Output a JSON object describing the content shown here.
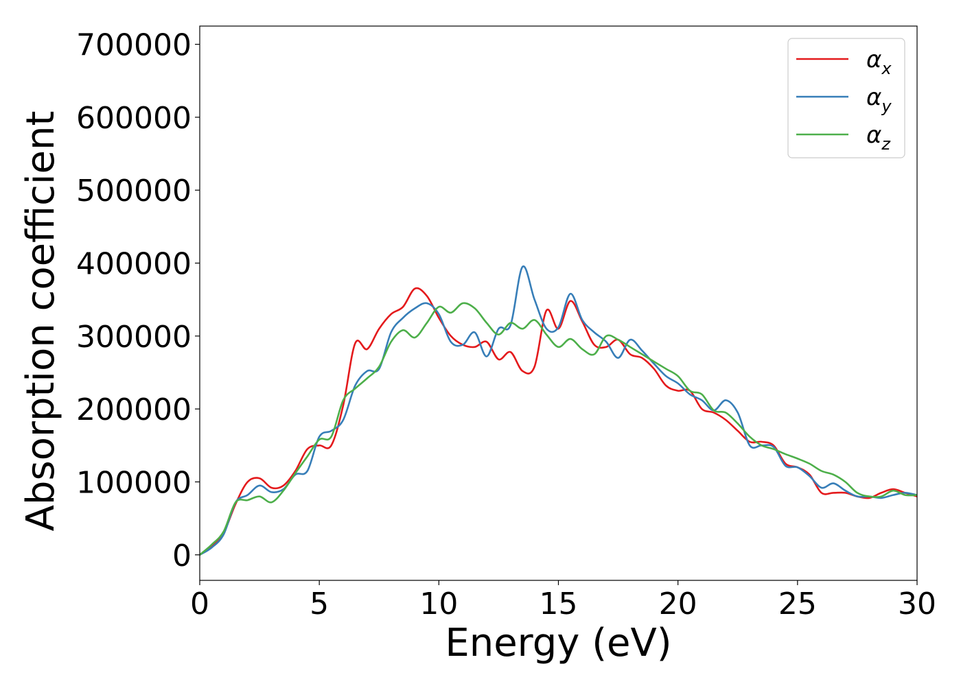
{
  "chart_data": {
    "type": "line",
    "title": "",
    "xlabel": "Energy (eV)",
    "ylabel": "Absorption coefficient",
    "xlim": [
      0,
      30
    ],
    "ylim": [
      -35000,
      725000
    ],
    "xticks": [
      0,
      5,
      10,
      15,
      20,
      25,
      30
    ],
    "xtick_labels": [
      "0",
      "5",
      "10",
      "15",
      "20",
      "25",
      "30"
    ],
    "yticks": [
      0,
      100000,
      200000,
      300000,
      400000,
      500000,
      600000,
      700000
    ],
    "ytick_labels": [
      "0",
      "100000",
      "200000",
      "300000",
      "400000",
      "500000",
      "600000",
      "700000"
    ],
    "grid": false,
    "legend_position": "top-right",
    "series": [
      {
        "name": "αx",
        "symbol": "α",
        "subscript": "x",
        "color": "#e41a1c",
        "x": [
          0,
          0.5,
          1,
          1.5,
          2,
          2.5,
          3,
          3.5,
          4,
          4.5,
          5,
          5.5,
          6,
          6.5,
          7,
          7.5,
          8,
          8.5,
          9,
          9.5,
          10,
          10.5,
          11,
          11.5,
          12,
          12.5,
          13,
          13.5,
          14,
          14.5,
          15,
          15.5,
          16,
          16.5,
          17,
          17.5,
          18,
          18.5,
          19,
          19.5,
          20,
          20.5,
          21,
          21.5,
          22,
          22.5,
          23,
          23.5,
          24,
          24.5,
          25,
          25.5,
          26,
          26.5,
          27,
          27.5,
          28,
          28.5,
          29,
          29.5,
          30
        ],
        "y": [
          0,
          12000,
          30000,
          70000,
          100000,
          105000,
          92000,
          95000,
          115000,
          145000,
          150000,
          150000,
          205000,
          290000,
          282000,
          310000,
          330000,
          340000,
          365000,
          355000,
          325000,
          300000,
          288000,
          285000,
          292000,
          268000,
          278000,
          252000,
          258000,
          335000,
          310000,
          348000,
          320000,
          288000,
          285000,
          295000,
          275000,
          270000,
          255000,
          232000,
          225000,
          225000,
          200000,
          195000,
          185000,
          170000,
          155000,
          155000,
          150000,
          125000,
          120000,
          110000,
          85000,
          85000,
          85000,
          80000,
          78000,
          85000,
          90000,
          85000,
          80000
        ]
      },
      {
        "name": "αy",
        "symbol": "α",
        "subscript": "y",
        "color": "#377eb8",
        "x": [
          0,
          0.5,
          1,
          1.5,
          2,
          2.5,
          3,
          3.5,
          4,
          4.5,
          5,
          5.5,
          6,
          6.5,
          7,
          7.5,
          8,
          8.5,
          9,
          9.5,
          10,
          10.5,
          11,
          11.5,
          12,
          12.5,
          13,
          13.5,
          14,
          14.5,
          15,
          15.5,
          16,
          16.5,
          17,
          17.5,
          18,
          18.5,
          19,
          19.5,
          20,
          20.5,
          21,
          21.5,
          22,
          22.5,
          23,
          23.5,
          24,
          24.5,
          25,
          25.5,
          26,
          26.5,
          27,
          27.5,
          28,
          28.5,
          29,
          29.5,
          30
        ],
        "y": [
          0,
          10000,
          28000,
          72000,
          82000,
          95000,
          86000,
          90000,
          110000,
          115000,
          162000,
          170000,
          185000,
          232000,
          252000,
          255000,
          305000,
          325000,
          338000,
          345000,
          330000,
          292000,
          288000,
          305000,
          272000,
          310000,
          315000,
          395000,
          350000,
          310000,
          312000,
          358000,
          322000,
          305000,
          292000,
          270000,
          295000,
          280000,
          262000,
          245000,
          235000,
          220000,
          212000,
          198000,
          212000,
          195000,
          150000,
          150000,
          148000,
          122000,
          120000,
          108000,
          92000,
          98000,
          88000,
          80000,
          80000,
          78000,
          82000,
          85000,
          82000
        ]
      },
      {
        "name": "αz",
        "symbol": "α",
        "subscript": "z",
        "color": "#4daf4a",
        "x": [
          0,
          0.5,
          1,
          1.5,
          2,
          2.5,
          3,
          3.5,
          4,
          4.5,
          5,
          5.5,
          6,
          6.5,
          7,
          7.5,
          8,
          8.5,
          9,
          9.5,
          10,
          10.5,
          11,
          11.5,
          12,
          12.5,
          13,
          13.5,
          14,
          14.5,
          15,
          15.5,
          16,
          16.5,
          17,
          17.5,
          18,
          18.5,
          19,
          19.5,
          20,
          20.5,
          21,
          21.5,
          22,
          22.5,
          23,
          23.5,
          24,
          24.5,
          25,
          25.5,
          26,
          26.5,
          27,
          27.5,
          28,
          28.5,
          29,
          29.5,
          30
        ],
        "y": [
          0,
          14000,
          32000,
          72000,
          75000,
          80000,
          72000,
          88000,
          112000,
          135000,
          158000,
          162000,
          212000,
          228000,
          242000,
          258000,
          292000,
          308000,
          298000,
          318000,
          340000,
          332000,
          345000,
          338000,
          318000,
          302000,
          318000,
          310000,
          322000,
          302000,
          285000,
          296000,
          282000,
          275000,
          300000,
          295000,
          285000,
          275000,
          265000,
          255000,
          245000,
          225000,
          220000,
          198000,
          195000,
          180000,
          162000,
          150000,
          145000,
          138000,
          132000,
          125000,
          115000,
          110000,
          100000,
          85000,
          80000,
          80000,
          88000,
          82000,
          82000
        ]
      }
    ]
  }
}
